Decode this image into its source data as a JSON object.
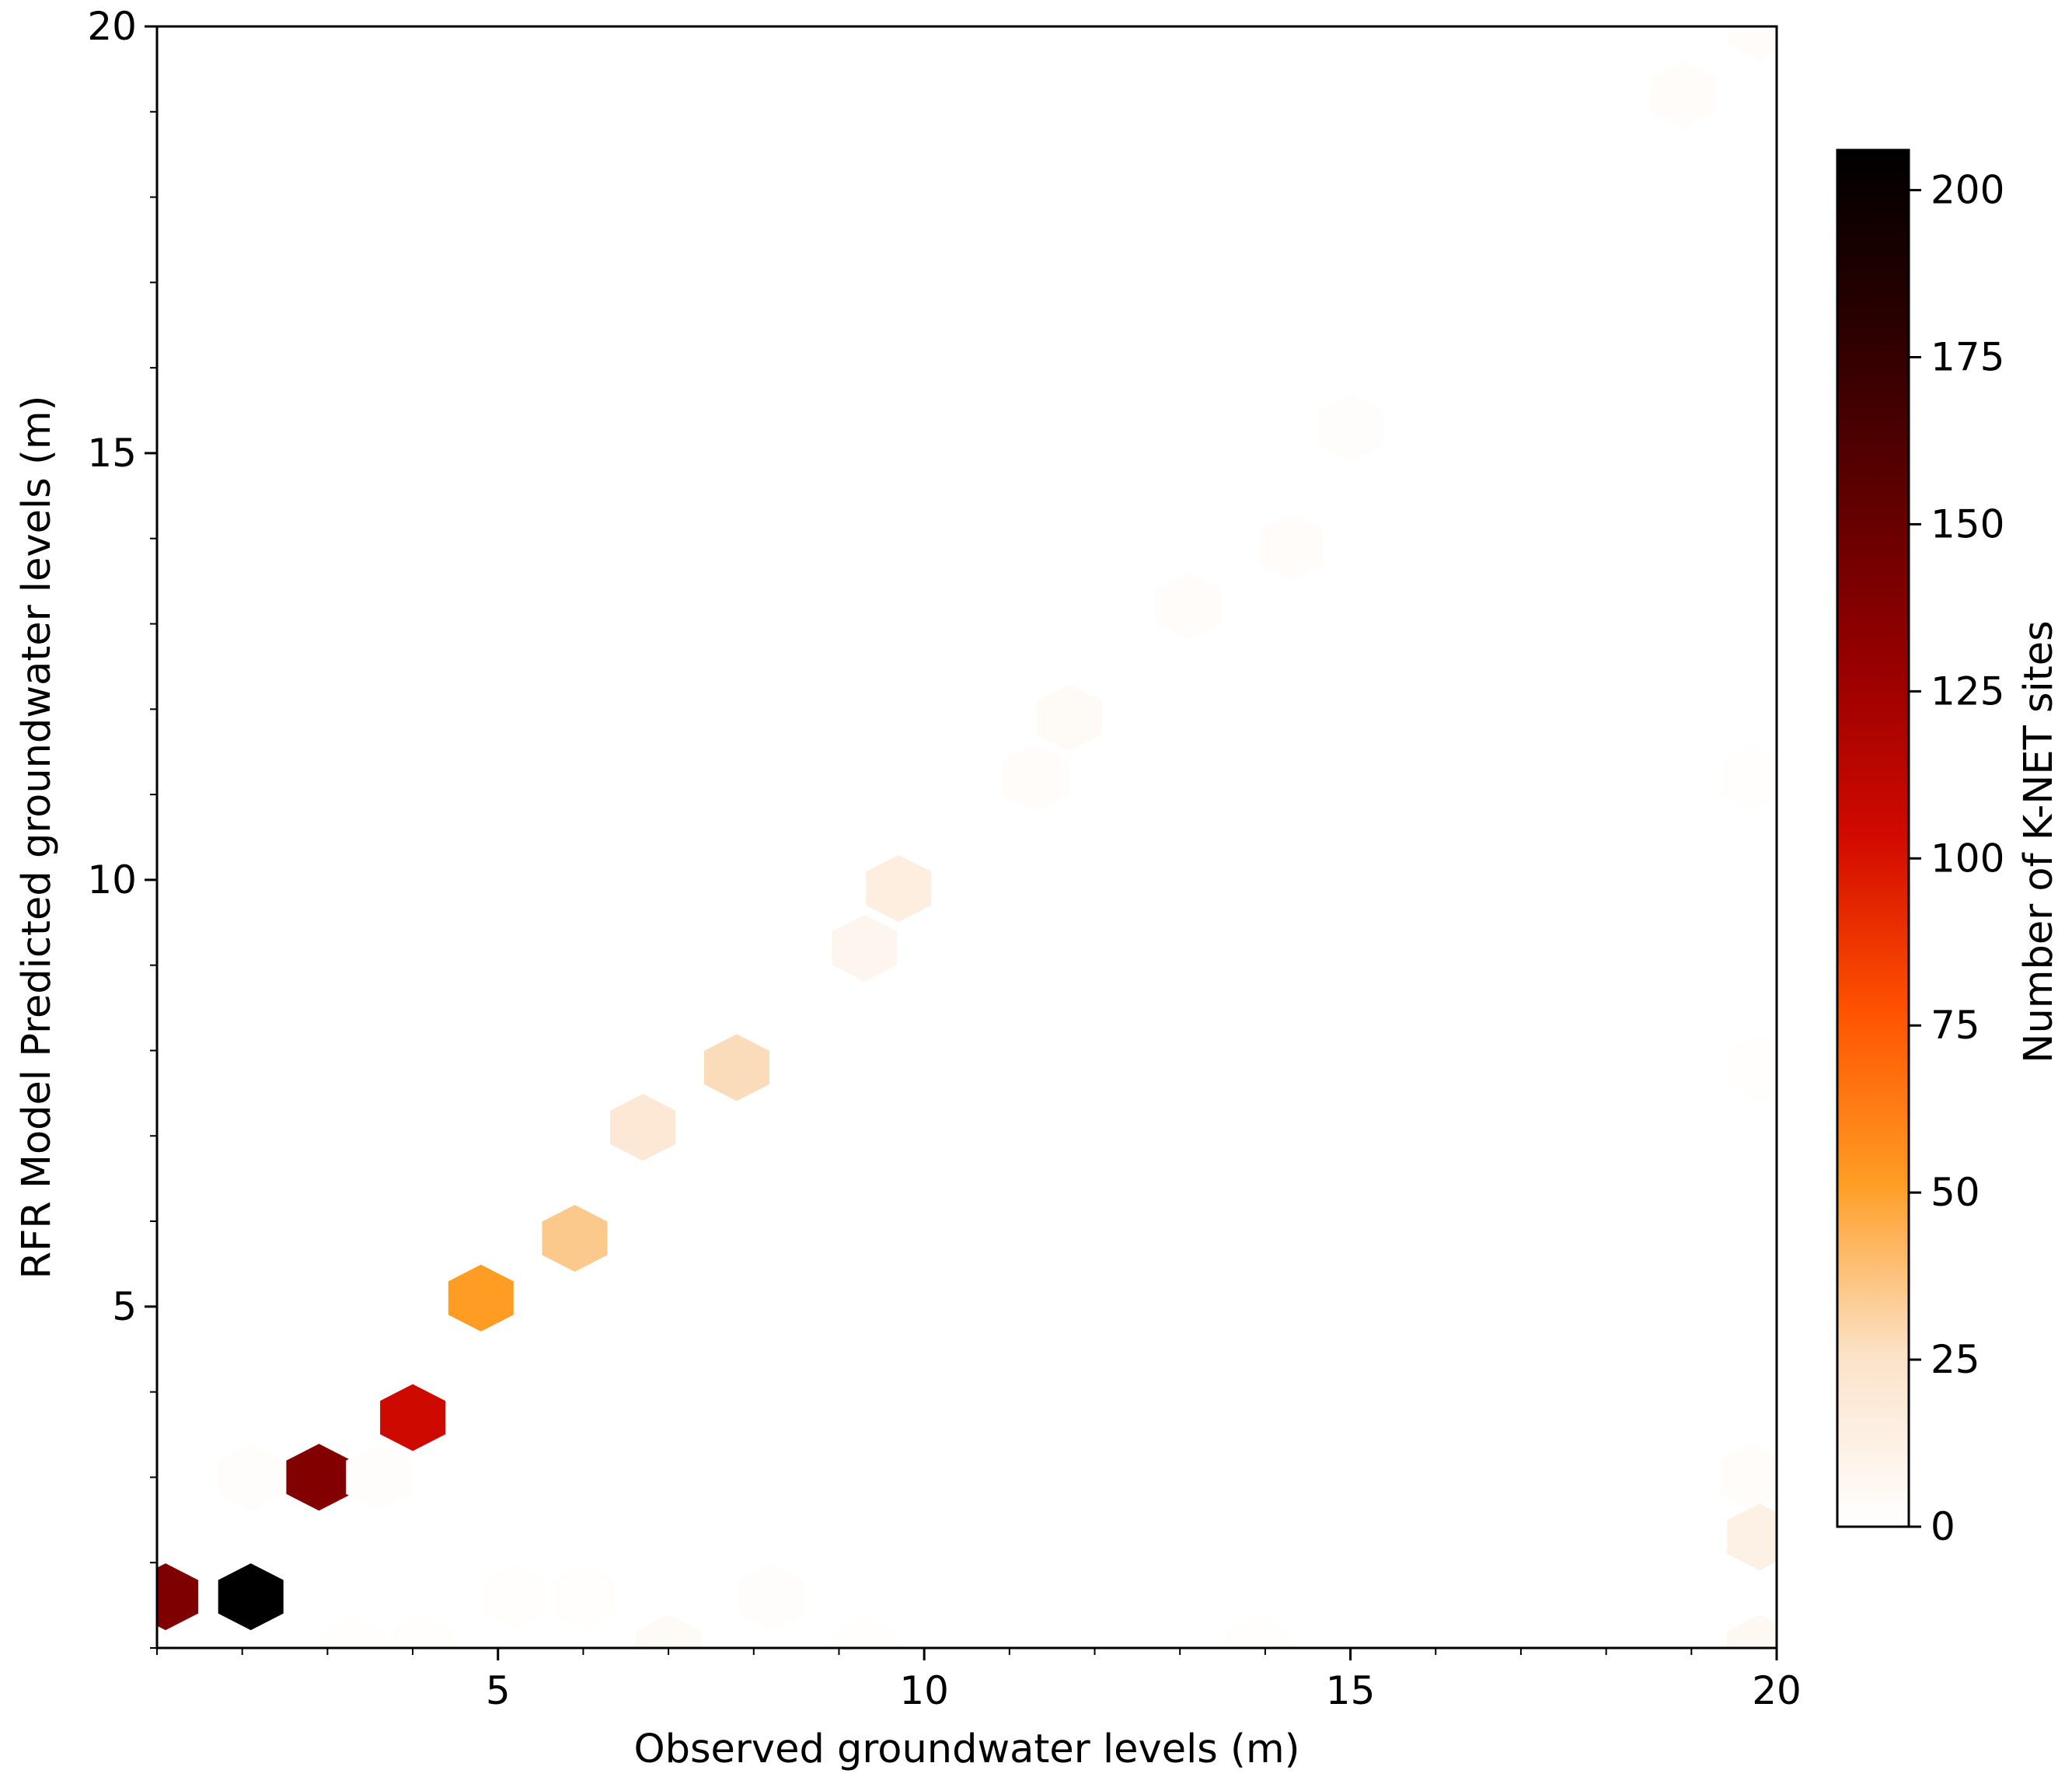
{
  "chart_data": {
    "type": "hexbin",
    "xlabel": "Observed groundwater levels (m)",
    "ylabel": "RFR Model Predicted groundwater levels (m)",
    "xlim": [
      1,
      20
    ],
    "ylim": [
      1,
      20
    ],
    "x_ticks": [
      5,
      10,
      15,
      20
    ],
    "y_ticks": [
      5,
      10,
      15,
      20
    ],
    "grid": false,
    "colormap": "gist_heat_r",
    "colorbar": {
      "label": "Number of K-NET sites",
      "range": [
        0,
        206
      ],
      "ticks": [
        0,
        25,
        50,
        75,
        100,
        125,
        150,
        175,
        200
      ]
    },
    "bins": [
      {
        "x": 1.1,
        "y": 1.6,
        "count": 140
      },
      {
        "x": 2.1,
        "y": 1.6,
        "count": 206
      },
      {
        "x": 2.9,
        "y": 3.0,
        "count": 138
      },
      {
        "x": 4.0,
        "y": 3.7,
        "count": 105
      },
      {
        "x": 4.8,
        "y": 5.1,
        "count": 52
      },
      {
        "x": 5.9,
        "y": 5.8,
        "count": 35
      },
      {
        "x": 6.7,
        "y": 7.1,
        "count": 20
      },
      {
        "x": 7.8,
        "y": 7.8,
        "count": 28
      },
      {
        "x": 9.3,
        "y": 9.2,
        "count": 8
      },
      {
        "x": 9.7,
        "y": 9.9,
        "count": 15
      },
      {
        "x": 11.3,
        "y": 11.2,
        "count": 3
      },
      {
        "x": 11.7,
        "y": 11.9,
        "count": 4
      },
      {
        "x": 13.1,
        "y": 13.2,
        "count": 3
      },
      {
        "x": 14.3,
        "y": 13.9,
        "count": 3
      },
      {
        "x": 15.0,
        "y": 15.3,
        "count": 2
      },
      {
        "x": 18.9,
        "y": 19.2,
        "count": 3
      },
      {
        "x": 19.8,
        "y": 20.0,
        "count": 3
      },
      {
        "x": 19.7,
        "y": 11.2,
        "count": 1
      },
      {
        "x": 19.8,
        "y": 7.8,
        "count": 1
      },
      {
        "x": 19.7,
        "y": 3.0,
        "count": 3
      },
      {
        "x": 19.8,
        "y": 2.3,
        "count": 12
      },
      {
        "x": 19.8,
        "y": 1.0,
        "count": 6
      },
      {
        "x": 2.1,
        "y": 3.0,
        "count": 2
      },
      {
        "x": 3.6,
        "y": 3.0,
        "count": 2
      },
      {
        "x": 5.2,
        "y": 1.6,
        "count": 1
      },
      {
        "x": 6.0,
        "y": 1.6,
        "count": 1
      },
      {
        "x": 8.2,
        "y": 1.6,
        "count": 2
      },
      {
        "x": 7.0,
        "y": 1.0,
        "count": 4
      },
      {
        "x": 3.3,
        "y": 1.0,
        "count": 1
      },
      {
        "x": 4.1,
        "y": 1.0,
        "count": 1
      },
      {
        "x": 9.3,
        "y": 1.0,
        "count": 1
      },
      {
        "x": 13.9,
        "y": 1.0,
        "count": 1
      }
    ]
  }
}
